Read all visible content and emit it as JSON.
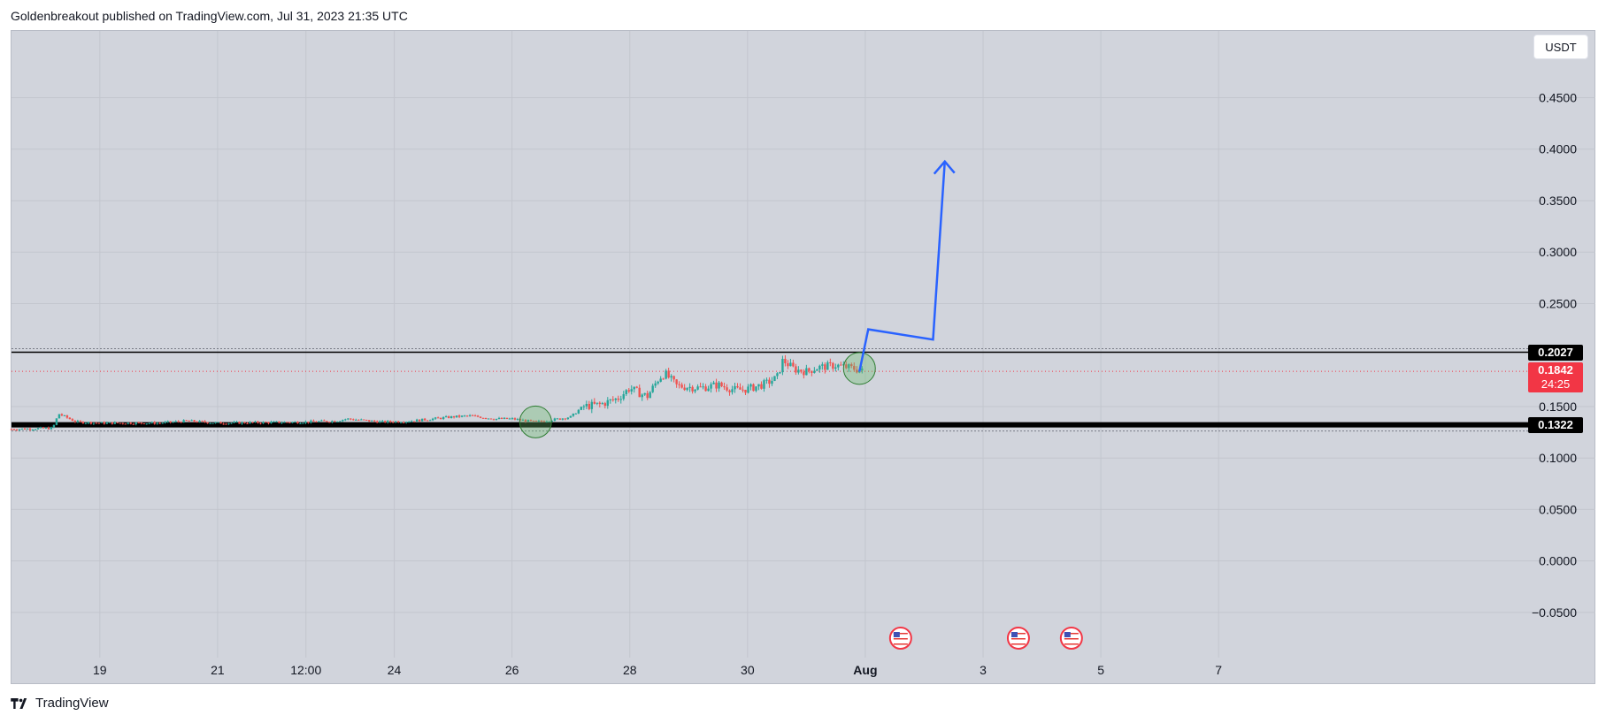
{
  "header": {
    "text": "Goldenbreakout published on TradingView.com, Jul 31, 2023 21:35 UTC"
  },
  "currency_button": {
    "label": "USDT"
  },
  "footer": {
    "brand": "TradingView"
  },
  "colors": {
    "up": "#26a69a",
    "down": "#ef5350",
    "arrow": "#2962ff",
    "background": "#d1d4dc",
    "level_line": "#000000",
    "current_price": "#f23645",
    "circle_fill": "#66bb6a"
  },
  "chart_data": {
    "type": "candlestick",
    "symbol_currency": "USDT",
    "y_ticks": [
      "0.4500",
      "0.4000",
      "0.3500",
      "0.3000",
      "0.2500",
      "0.1500",
      "0.1000",
      "0.0500",
      "0.0000",
      "−0.0500"
    ],
    "y_tick_values": [
      0.45,
      0.4,
      0.35,
      0.3,
      0.25,
      0.15,
      0.1,
      0.05,
      0.0,
      -0.05
    ],
    "ylim": [
      -0.0887,
      0.5148
    ],
    "x_ticks": [
      "19",
      "21",
      "12:00",
      "24",
      "26",
      "28",
      "30",
      "Aug",
      "3",
      "5",
      "7"
    ],
    "x_tick_days": [
      19,
      21,
      22.5,
      24,
      26,
      28,
      30,
      32,
      34,
      36,
      38
    ],
    "xlim": [
      17.5,
      39.65
    ],
    "grid": true,
    "price_labels": [
      {
        "value": 0.2027,
        "text": "0.2027",
        "style": "level"
      },
      {
        "value": 0.1842,
        "text": "0.1842",
        "countdown": "24:25",
        "style": "current"
      },
      {
        "value": 0.1322,
        "text": "0.1322",
        "style": "level"
      }
    ],
    "horizontal_levels": [
      0.2027,
      0.1322
    ],
    "price_path": [
      [
        17.5,
        0.128
      ],
      [
        18.2,
        0.129
      ],
      [
        18.3,
        0.143
      ],
      [
        18.6,
        0.135
      ],
      [
        19.0,
        0.134
      ],
      [
        20.0,
        0.134
      ],
      [
        20.5,
        0.136
      ],
      [
        21.0,
        0.134
      ],
      [
        22.5,
        0.135
      ],
      [
        23.0,
        0.136
      ],
      [
        23.2,
        0.138
      ],
      [
        23.8,
        0.135
      ],
      [
        24.3,
        0.136
      ],
      [
        25.0,
        0.14
      ],
      [
        25.3,
        0.141
      ],
      [
        25.7,
        0.138
      ],
      [
        26.0,
        0.138
      ],
      [
        26.4,
        0.135
      ],
      [
        26.8,
        0.138
      ],
      [
        27.0,
        0.14
      ],
      [
        27.2,
        0.15
      ],
      [
        27.5,
        0.152
      ],
      [
        27.8,
        0.158
      ],
      [
        28.0,
        0.168
      ],
      [
        28.2,
        0.162
      ],
      [
        28.3,
        0.16
      ],
      [
        28.5,
        0.178
      ],
      [
        28.6,
        0.182
      ],
      [
        28.8,
        0.17
      ],
      [
        29.2,
        0.168
      ],
      [
        29.5,
        0.171
      ],
      [
        29.8,
        0.166
      ],
      [
        30.0,
        0.167
      ],
      [
        30.3,
        0.172
      ],
      [
        30.5,
        0.178
      ],
      [
        30.6,
        0.195
      ],
      [
        30.8,
        0.186
      ],
      [
        31.0,
        0.184
      ],
      [
        31.2,
        0.188
      ],
      [
        31.5,
        0.19
      ],
      [
        31.8,
        0.187
      ],
      [
        31.95,
        0.1842
      ]
    ],
    "highlight_circles": [
      {
        "x": 26.4,
        "y": 0.135
      },
      {
        "x": 31.9,
        "y": 0.187
      }
    ],
    "projection_arrow": [
      [
        31.9,
        0.184
      ],
      [
        32.05,
        0.225
      ],
      [
        33.15,
        0.215
      ],
      [
        33.35,
        0.388
      ]
    ],
    "event_markers": [
      {
        "x": 32.6,
        "icon": "us-flag-icon"
      },
      {
        "x": 34.6,
        "icon": "us-flag-icon"
      },
      {
        "x": 35.5,
        "icon": "us-flag-icon"
      }
    ]
  }
}
